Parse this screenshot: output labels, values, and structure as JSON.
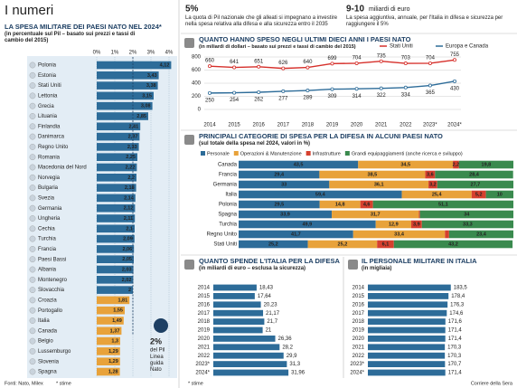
{
  "header": {
    "title": "I numeri"
  },
  "facts": [
    {
      "value": "5%",
      "text": "La quota di Pil nazionale che gli alleati si impegnano a investire nella spesa relativa alla difesa e alla sicurezza entro il 2035"
    },
    {
      "value": "9-10",
      "unit": "miliardi di euro",
      "text": "La spesa aggiuntiva, annuale, per l'Italia in difesa e sicurezza per raggiungere il 5%"
    }
  ],
  "chart_data": [
    {
      "type": "hbar",
      "title": "LA SPESA MILITARE DEI PAESI NATO NEL 2024*",
      "subtitle": "(in percentuale sul Pil – basato sui prezzi e tassi di cambio del 2015)",
      "categories": [
        "Polonia",
        "Estonia",
        "Stati Uniti",
        "Lettonia",
        "Grecia",
        "Lituania",
        "Finlandia",
        "Danimarca",
        "Regno Unito",
        "Romania",
        "Macedonia del Nord",
        "Norvegia",
        "Bulgaria",
        "Svezia",
        "Germania",
        "Ungheria",
        "Cechia",
        "Turchia",
        "Francia",
        "Paesi Bassi",
        "Albania",
        "Montenegro",
        "Slovacchia",
        "Croazia",
        "Portogallo",
        "Italia",
        "Canada",
        "Belgio",
        "Lussemburgo",
        "Slovenia",
        "Spagna"
      ],
      "values": [
        4.12,
        3.43,
        3.38,
        3.15,
        3.08,
        2.85,
        2.41,
        2.37,
        2.33,
        2.25,
        2.22,
        2.2,
        2.18,
        2.14,
        2.12,
        2.11,
        2.1,
        2.09,
        2.06,
        2.05,
        2.03,
        2.02,
        2,
        1.81,
        1.55,
        1.49,
        1.37,
        1.3,
        1.29,
        1.29,
        1.28
      ],
      "value_labels": [
        "4,12",
        "3,43",
        "3,38",
        "3,15",
        "3,08",
        "2,85",
        "2,41",
        "2,37",
        "2,33",
        "2,25",
        "2,22",
        "2,2",
        "2,18",
        "2,14",
        "2,12",
        "2,11",
        "2,1",
        "2,09",
        "2,06",
        "2,05",
        "2,03",
        "2,02",
        "2",
        "1,81",
        "1,55",
        "1,49",
        "1,37",
        "1,3",
        "1,29",
        "1,29",
        "1,28"
      ],
      "color": "#2d6c99",
      "below_reference_color": "#e8a23a",
      "reference_line": 2,
      "annotation": {
        "label": "2%",
        "text": "del Pil",
        "note": "Linea guida Nato"
      },
      "xlim": [
        0,
        4
      ],
      "xticks": [
        {
          "value": 0,
          "label": "0%"
        },
        {
          "value": 1,
          "label": "1%"
        },
        {
          "value": 2,
          "label": "2%"
        },
        {
          "value": 3,
          "label": "3%"
        },
        {
          "value": 4,
          "label": "4%"
        }
      ],
      "grid": true
    },
    {
      "type": "line",
      "title": "QUANTO HANNO SPESO NEGLI ULTIMI DIECI ANNI I PAESI NATO",
      "subtitle": "(in miliardi di dollari – basato sui prezzi e tassi di cambio del 2015)",
      "categories": [
        "2014",
        "2015",
        "2016",
        "2017",
        "2018",
        "2019",
        "2020",
        "2021",
        "2022",
        "2023*",
        "2024*"
      ],
      "series": [
        {
          "name": "Stati Uniti",
          "color": "#d6302b",
          "values": [
            660,
            641,
            651,
            626,
            640,
            699,
            704,
            735,
            703,
            704,
            755
          ]
        },
        {
          "name": "Europa e Canada",
          "color": "#2d6c99",
          "values": [
            250,
            254,
            262,
            277,
            289,
            309,
            314,
            322,
            334,
            365,
            430
          ]
        }
      ],
      "ylim": [
        0,
        800
      ],
      "yticks": [
        0,
        200,
        400,
        600,
        800
      ],
      "grid": true
    },
    {
      "type": "stacked_hbar",
      "title": "PRINCIPALI CATEGORIE DI SPESA PER LA DIFESA IN ALCUNI PAESI NATO",
      "subtitle": "(sul totale della spesa nel 2024, valori in %)",
      "categories": [
        "Canada",
        "Francia",
        "Germania",
        "Italia",
        "Polonia",
        "Spagna",
        "Turchia",
        "Regno Unito",
        "Stati Uniti"
      ],
      "series": [
        {
          "name": "Personale",
          "color": "#2d6c99",
          "values": [
            43.5,
            29.4,
            33,
            59.4,
            29.5,
            33.9,
            49.9,
            41.7,
            25.2
          ],
          "value_labels": [
            "43,5",
            "29,4",
            "33",
            "59,4",
            "29,5",
            "33,9",
            "49,9",
            "41,7",
            "25,2"
          ]
        },
        {
          "name": "Operazioni & Manutenzione",
          "color": "#e8a23a",
          "values": [
            34.5,
            38.5,
            36.1,
            25.4,
            14.8,
            31.7,
            12.9,
            33.4,
            25.2
          ],
          "value_labels": [
            "34,5",
            "38,5",
            "36,1",
            "25,4",
            "14,8",
            "31,7",
            "12,9",
            "33,4",
            "25,2"
          ]
        },
        {
          "name": "Infrastrutture",
          "color": "#d6402e",
          "values": [
            2.2,
            3.6,
            3.2,
            5.2,
            4.6,
            0.4,
            3.9,
            1.5,
            6.1
          ],
          "value_labels": [
            "2,2",
            "3,6",
            "3,2",
            "5,2",
            "4,6",
            null,
            "3,9",
            null,
            "6,1"
          ]
        },
        {
          "name": "Grandi equipaggiamenti (anche ricerca e sviluppo)",
          "color": "#3a8a4e",
          "values": [
            19.8,
            28.4,
            27.7,
            10,
            51.1,
            34,
            33.3,
            23.4,
            43.2
          ],
          "value_labels": [
            "19,8",
            "28,4",
            "27,7",
            "10",
            "51,1",
            "34",
            "33,3",
            "23,4",
            "43,2"
          ]
        }
      ]
    },
    {
      "type": "hbar_simple",
      "title": "QUANTO SPENDE L'ITALIA PER LA DIFESA",
      "subtitle": "(in miliardi di euro – esclusa la sicurezza)",
      "categories": [
        "2014",
        "2015",
        "2016",
        "2017",
        "2018",
        "2019",
        "2020",
        "2021",
        "2022",
        "2023*",
        "2024*"
      ],
      "values": [
        18.43,
        17.64,
        20.23,
        21.17,
        21.7,
        21,
        26.36,
        28.2,
        29.9,
        31.3,
        31.96
      ],
      "value_labels": [
        "18,43",
        "17,64",
        "20,23",
        "21,17",
        "21,7",
        "21",
        "26,36",
        "28,2",
        "29,9",
        "31,3",
        "31,96"
      ],
      "color": "#2d6c99"
    },
    {
      "type": "hbar_simple",
      "title": "IL PERSONALE MILITARE IN ITALIA",
      "subtitle": "(in migliaia)",
      "categories": [
        "2014",
        "2015",
        "2016",
        "2017",
        "2018",
        "2019",
        "2020",
        "2021",
        "2022",
        "2023*",
        "2024*"
      ],
      "values": [
        183.5,
        178.4,
        176.3,
        174.6,
        171.6,
        171.4,
        171.4,
        170.3,
        170.3,
        170.7,
        171.4
      ],
      "value_labels": [
        "183,5",
        "178,4",
        "176,3",
        "174,6",
        "171,6",
        "171,4",
        "171,4",
        "170,3",
        "170,3",
        "170,7",
        "171,4"
      ],
      "color": "#2d6c99"
    }
  ],
  "footer": {
    "sources": "Fonti: Nato, Milex",
    "note": "* stime",
    "note_bottom": "* stime",
    "publisher": "Corriere della Sera"
  }
}
